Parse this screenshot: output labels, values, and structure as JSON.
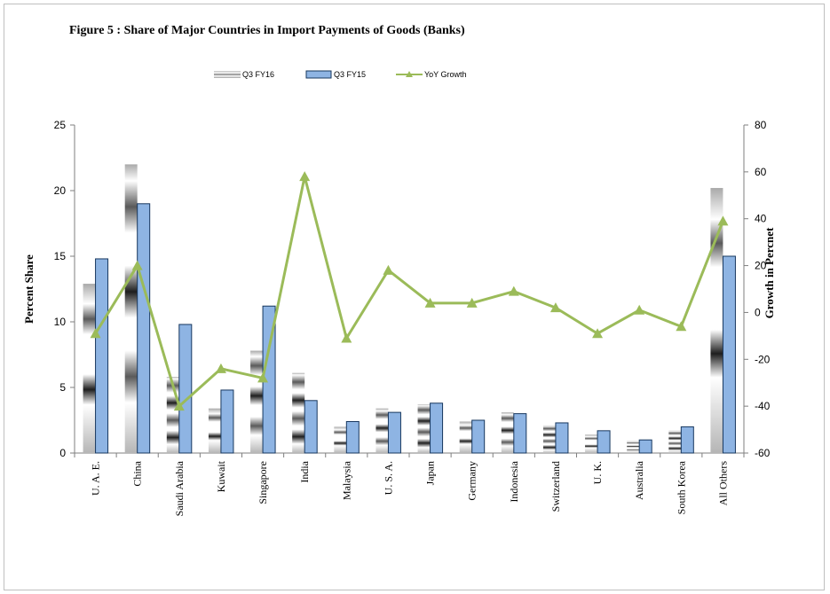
{
  "title": "Figure  5 :  Share of Major Countries in Import Payments of Goods (Banks)",
  "chart_data": {
    "type": "bar",
    "categories": [
      "U. A. E.",
      "China",
      "Saudi Arabia",
      "Kuwait",
      "Singapore",
      "India",
      "Malaysia",
      "U. S. A.",
      "Japan",
      "Germany",
      "Indonesia",
      "Switzerland",
      "U. K.",
      "Australia",
      "South Korea",
      "All Others"
    ],
    "series": [
      {
        "name": "Q3 FY16",
        "kind": "bar",
        "axis": "left",
        "values": [
          12.9,
          22.0,
          5.8,
          3.4,
          7.8,
          6.1,
          2.0,
          3.4,
          3.7,
          2.4,
          3.1,
          2.1,
          1.4,
          0.9,
          1.7,
          20.2
        ]
      },
      {
        "name": "Q3 FY15",
        "kind": "bar",
        "axis": "left",
        "color": "#8eb4e3",
        "values": [
          14.8,
          19.0,
          9.8,
          4.8,
          11.2,
          4.0,
          2.4,
          3.1,
          3.8,
          2.5,
          3.0,
          2.3,
          1.7,
          1.0,
          2.0,
          15.0
        ]
      },
      {
        "name": "YoY Growth",
        "kind": "line",
        "axis": "right",
        "color": "#9bbb59",
        "values": [
          -9,
          20,
          -40,
          -24,
          -28,
          58,
          -11,
          18,
          4,
          4,
          9,
          2,
          -9,
          1,
          -6,
          39
        ]
      }
    ],
    "ylabel": "Percent Share",
    "y2label": "Growth in Percnet",
    "ylim": [
      0,
      25
    ],
    "yticks": [
      0,
      5,
      10,
      15,
      20,
      25
    ],
    "y2lim": [
      -60,
      80
    ],
    "y2ticks": [
      -60,
      -40,
      -20,
      0,
      20,
      40,
      60,
      80
    ],
    "legend_position": "top-center",
    "grid": false
  }
}
